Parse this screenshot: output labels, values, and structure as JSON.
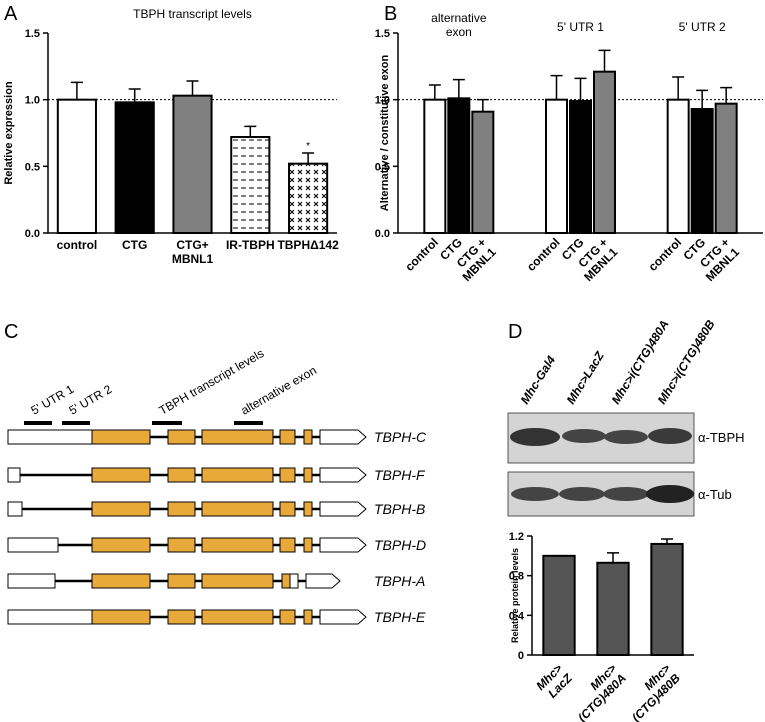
{
  "panel_labels": [
    "A",
    "B",
    "C",
    "D"
  ],
  "chart_data": [
    {
      "type": "bar",
      "title": "TBPH transcript levels",
      "y_label": "Relative expression",
      "categories": [
        "control",
        "CTG",
        "CTG+\nMBNL1",
        "IR-TBPH",
        "TBPHΔ142"
      ],
      "values": [
        1.0,
        0.98,
        1.03,
        0.72,
        0.52
      ],
      "errors": [
        0.13,
        0.1,
        0.11,
        0.08,
        0.08
      ],
      "colors": [
        "#ffffff",
        "#000000",
        "#808080",
        "#ffffff",
        "#ffffff"
      ],
      "patterns": [
        "none",
        "none",
        "none",
        "dashes",
        "crosses"
      ],
      "annotation": "*",
      "reference_line": 1,
      "ylim": [
        0,
        1.5
      ],
      "yticks": [
        {
          "value": 0,
          "label": "0.0"
        },
        0.5,
        {
          "value": 1,
          "label": "1.0"
        },
        1.5
      ]
    },
    {
      "type": "grouped_bar",
      "y_label": "Alternative / constitutive exon",
      "categories": [
        "alternative\nexon",
        "5' UTR 1",
        "5' UTR 2"
      ],
      "series": [
        {
          "name": "control",
          "color": "#ffffff",
          "values": [
            1.0,
            1.0,
            1.0
          ],
          "errors": [
            0.11,
            0.18,
            0.17
          ]
        },
        {
          "name": "CTG",
          "color": "#000000",
          "values": [
            1.01,
            0.99,
            0.93
          ],
          "errors": [
            0.14,
            0.17,
            0.14
          ]
        },
        {
          "name": "CTG +\nMBNL1",
          "color": "#808080",
          "values": [
            0.91,
            1.21,
            0.97
          ],
          "errors": [
            0.09,
            0.16,
            0.12
          ]
        }
      ],
      "reference_line": 1,
      "ylim": [
        0,
        1.5
      ],
      "yticks": [
        {
          "value": 0,
          "label": "0.0"
        },
        0.5,
        {
          "value": 1,
          "label": "1.0"
        },
        1.5
      ]
    },
    {
      "type": "bar",
      "y_label": "Relative protein levels",
      "categories": [
        "Mhc>\nLacZ",
        "Mhc>\n(CTG)480A",
        "Mhc>\n(CTG)480B"
      ],
      "values": [
        1.0,
        0.93,
        1.12
      ],
      "errors": [
        null,
        0.1,
        0.05
      ],
      "colors": [
        "#555555",
        "#555555",
        "#555555"
      ],
      "patterns": [
        "none",
        "none",
        "none"
      ],
      "ylim": [
        0,
        1.2
      ],
      "yticks": [
        0,
        0.4,
        0.8,
        1.2
      ]
    }
  ],
  "panel_c": {
    "regions": [
      "5' UTR 1",
      "5' UTR 2",
      "TBPH transcript  levels",
      "alternative exon"
    ],
    "isoforms": [
      "TBPH-C",
      "TBPH-F",
      "TBPH-B",
      "TBPH-D",
      "TBPH-A",
      "TBPH-E"
    ]
  },
  "panel_d": {
    "lanes": [
      "Mhc-Gal4",
      "Mhc>LacZ",
      "Mhc>i(CTG)480A",
      "Mhc>i(CTG)480B"
    ],
    "antibodies": [
      "α-TBPH",
      "α-Tub"
    ]
  }
}
